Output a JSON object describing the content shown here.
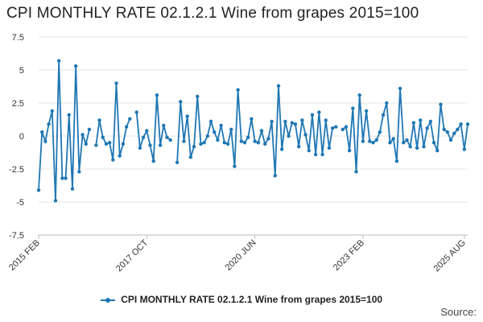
{
  "title": "CPI MONTHLY RATE 02.1.2.1 Wine from grapes 2015=100",
  "source_label": "Source:",
  "colors": {
    "series": "#1f77b4",
    "grid": "#e6e6e6"
  },
  "chart_data": {
    "type": "line",
    "title": "CPI MONTHLY RATE 02.1.2.1 Wine from grapes 2015=100",
    "ylim": [
      -7.5,
      7.5
    ],
    "y_ticks": [
      7.5,
      5,
      2.5,
      0,
      -2.5,
      -5,
      -7.5
    ],
    "y_tick_labels": [
      "7.5",
      "5",
      "2.5",
      "0",
      "-2.5",
      "-5",
      "-7.5"
    ],
    "x_tick_labels": [
      "2015 FEB",
      "2017 OCT",
      "2020 JUN",
      "2023 FEB",
      "2025 AUG"
    ],
    "x_tick_indices": [
      0,
      32,
      64,
      96,
      126
    ],
    "grid": true,
    "legend": "bottom-center",
    "series": [
      {
        "name": "CPI MONTHLY RATE 02.1.2.1 Wine from grapes 2015=100",
        "color": "#1f77b4",
        "values": [
          -4.1,
          0.3,
          -0.4,
          0.9,
          1.9,
          -4.9,
          5.7,
          -3.2,
          -3.2,
          1.6,
          -4.0,
          5.3,
          -2.7,
          0.1,
          -0.6,
          0.5,
          null,
          -0.7,
          1.2,
          -0.1,
          -0.6,
          -0.5,
          -1.8,
          4.0,
          -1.5,
          -0.6,
          0.7,
          1.3,
          null,
          1.8,
          -0.9,
          -0.1,
          0.4,
          -0.7,
          -1.9,
          3.1,
          -0.7,
          0.8,
          -0.1,
          -0.3,
          null,
          -2.0,
          2.6,
          -0.4,
          1.5,
          -1.6,
          -0.8,
          3.0,
          -0.6,
          -0.5,
          0.0,
          1.1,
          0.3,
          -0.3,
          0.8,
          -0.5,
          -0.6,
          0.5,
          -2.3,
          3.5,
          -0.4,
          -0.5,
          -0.1,
          1.3,
          -0.4,
          -0.5,
          0.4,
          -0.6,
          -0.2,
          1.1,
          -3.0,
          3.8,
          -1.0,
          1.1,
          0.0,
          1.0,
          0.9,
          -0.8,
          1.2,
          0.1,
          -1.1,
          1.6,
          -1.4,
          1.8,
          -1.4,
          1.2,
          -0.9,
          0.6,
          0.7,
          null,
          0.5,
          0.7,
          -1.1,
          2.1,
          -2.7,
          3.1,
          -0.4,
          1.9,
          -0.4,
          -0.5,
          -0.3,
          0.3,
          1.6,
          2.5,
          -0.5,
          -0.2,
          -1.9,
          3.6,
          -0.5,
          -0.3,
          -0.8,
          1.0,
          -0.9,
          1.2,
          -0.8,
          0.6,
          1.1,
          -0.5,
          -1.1,
          2.4,
          0.5,
          0.3,
          -0.3,
          0.2,
          0.5,
          0.9,
          -1.0,
          0.9
        ]
      }
    ]
  }
}
